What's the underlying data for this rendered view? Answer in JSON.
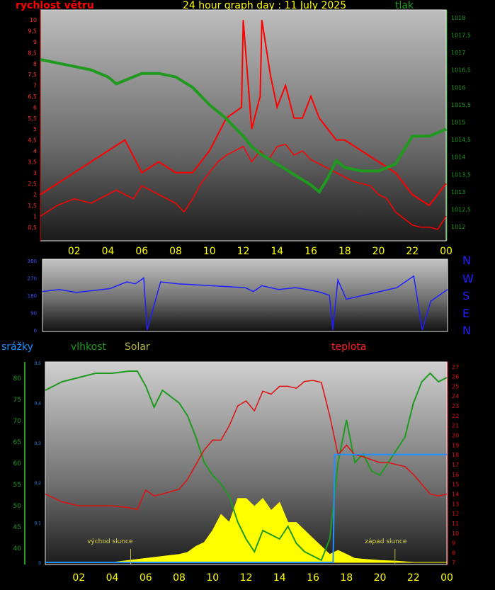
{
  "header": {
    "wind_label": "rychlost větru",
    "title": "24 hour graph day : 11 July 2025",
    "pressure_label": "tlak"
  },
  "direction_letters": [
    "N",
    "W",
    "S",
    "E",
    "N"
  ],
  "lower_header": {
    "rain_label": "srážky",
    "humidity_label": "vlhkost",
    "solar_label": "Solar",
    "temperature_label": "teplota"
  },
  "annotations": {
    "sunrise": "východ slunce",
    "sunset": "západ slunce"
  },
  "colors": {
    "wind": "#ff0000",
    "pressure": "#1f9a1f",
    "direction": "#2020ff",
    "rain": "#1e90ff",
    "humidity": "#1f9a1f",
    "solar": "#ffff00",
    "temperature": "#e01010",
    "time_axis": "#ffff00"
  },
  "chart_data": [
    {
      "type": "line",
      "name": "wind_and_pressure",
      "x_ticks": [
        "02",
        "04",
        "06",
        "08",
        "10",
        "12",
        "14",
        "16",
        "18",
        "20",
        "22",
        "00"
      ],
      "x_hours": [
        2,
        4,
        6,
        8,
        10,
        12,
        14,
        16,
        18,
        20,
        22,
        24
      ],
      "x_range": [
        0,
        24
      ],
      "y_left_ticks": [
        "0,5",
        "1",
        "1,5",
        "2",
        "2,5",
        "3",
        "3,5",
        "4",
        "4,5",
        "5",
        "5,5",
        "6",
        "6,5",
        "7",
        "7,5",
        "8",
        "8,5",
        "9",
        "9,5",
        "10"
      ],
      "y_left_range": [
        0.2,
        10.2
      ],
      "y_right_ticks": [
        "1012",
        "1012,5",
        "1013",
        "1013,5",
        "1014",
        "1014,5",
        "1015",
        "1015,5",
        "1016",
        "1016,5",
        "1017",
        "1017,5",
        "1018"
      ],
      "y_right_range": [
        1011.8,
        1018.1
      ],
      "series": [
        {
          "name": "rychlost větru",
          "axis": "left",
          "x": [
            0,
            1,
            2,
            3,
            4,
            4.5,
            5,
            5.5,
            6,
            7,
            8,
            8.5,
            9,
            9.5,
            10,
            10.5,
            11,
            11.5,
            12,
            12.5,
            13,
            13.5,
            14,
            14.5,
            15,
            15.5,
            16,
            16.5,
            17,
            17.5,
            18,
            18.5,
            19,
            19.5,
            20,
            20.5,
            21,
            21.5,
            22,
            22.5,
            23,
            23.5,
            24
          ],
          "values": [
            1,
            1.5,
            1.8,
            1.6,
            2,
            2.2,
            2,
            1.8,
            2.4,
            2,
            1.6,
            1.2,
            1.8,
            2.5,
            3,
            3.5,
            3.8,
            4,
            4.2,
            3.5,
            4,
            3.6,
            4.2,
            4.3,
            3.8,
            4,
            3.6,
            3.4,
            3.2,
            3,
            2.8,
            2.6,
            2.5,
            2.4,
            2,
            1.8,
            1.2,
            0.9,
            0.6,
            0.5,
            0.5,
            0.4,
            1
          ],
          "gusts_x": [
            0,
            1,
            2,
            3,
            4,
            5,
            6,
            7,
            8,
            9,
            10,
            11,
            11.9,
            12,
            12.5,
            13,
            13.1,
            13.6,
            14,
            14.5,
            15,
            15.5,
            16,
            16.5,
            17,
            17.5,
            18,
            19,
            20,
            21,
            22,
            23,
            24
          ],
          "gusts": [
            2,
            2.5,
            3,
            3.5,
            4,
            4.5,
            3,
            3.5,
            3,
            3,
            4,
            5.5,
            6,
            10,
            5,
            6.5,
            10,
            7.5,
            6,
            7,
            5.5,
            5.5,
            6.5,
            5.5,
            5,
            4.5,
            4.5,
            4,
            3.5,
            3,
            2,
            1.5,
            2.5
          ]
        },
        {
          "name": "tlak",
          "axis": "right",
          "x": [
            0,
            1,
            2,
            3,
            4,
            4.5,
            5,
            6,
            7,
            8,
            9,
            10,
            11,
            12,
            12.5,
            13,
            14,
            15,
            16,
            16.5,
            17,
            17.5,
            18,
            19,
            20,
            20.5,
            21,
            21.5,
            22,
            23,
            24
          ],
          "values": [
            1016.8,
            1016.7,
            1016.6,
            1016.5,
            1016.3,
            1016.1,
            1016.2,
            1016.4,
            1016.4,
            1016.3,
            1016,
            1015.5,
            1015.1,
            1014.6,
            1014.3,
            1014.1,
            1013.8,
            1013.5,
            1013.2,
            1013,
            1013.4,
            1013.9,
            1013.7,
            1013.6,
            1013.6,
            1013.7,
            1013.8,
            1014.2,
            1014.6,
            1014.6,
            1014.8
          ]
        }
      ]
    },
    {
      "type": "line",
      "name": "wind_direction",
      "y_ticks": [
        "0",
        "90",
        "180",
        "270",
        "360"
      ],
      "y_range": [
        0,
        360
      ],
      "series": [
        {
          "name": "direction",
          "x": [
            0,
            1,
            2,
            3,
            4,
            5,
            5.5,
            6,
            6.2,
            7,
            8,
            9,
            10,
            11,
            12,
            12.5,
            13,
            14,
            15,
            16,
            16.5,
            17,
            17.2,
            17.5,
            18,
            19,
            20,
            21,
            21.5,
            22,
            22.5,
            23,
            24
          ],
          "values": [
            200,
            210,
            195,
            205,
            215,
            250,
            240,
            270,
            0,
            250,
            240,
            235,
            230,
            225,
            220,
            200,
            230,
            210,
            220,
            205,
            195,
            180,
            0,
            260,
            160,
            180,
            200,
            220,
            250,
            280,
            0,
            150,
            210
          ]
        }
      ]
    },
    {
      "type": "line",
      "name": "rain_humidity_solar_temperature",
      "y_humidity_ticks": [
        "40",
        "45",
        "50",
        "55",
        "60",
        "65",
        "70",
        "75",
        "80"
      ],
      "y_humidity_range": [
        36,
        83
      ],
      "y_rain_ticks": [
        "0",
        "0,1",
        "0,2",
        "0,3",
        "0,4",
        "0,5"
      ],
      "y_rain_range": [
        0,
        0.5
      ],
      "y_temperature_ticks": [
        "7",
        "8",
        "9",
        "10",
        "11",
        "12",
        "13",
        "14",
        "15",
        "16",
        "17",
        "18",
        "19",
        "20",
        "21",
        "22",
        "23",
        "24",
        "25",
        "26",
        "27"
      ],
      "y_temperature_range": [
        6.8,
        27.2
      ],
      "series": [
        {
          "name": "vlhkost",
          "axis": "humidity",
          "x": [
            0,
            1,
            2,
            3,
            4,
            5,
            5.5,
            6,
            6.5,
            7,
            8,
            8.5,
            9,
            9.5,
            10,
            10.5,
            11,
            11.5,
            12,
            12.5,
            13,
            13.5,
            14,
            14.5,
            15,
            15.5,
            16,
            16.5,
            17,
            17.5,
            18,
            18.5,
            19,
            19.5,
            20,
            20.5,
            21,
            21.5,
            22,
            22.5,
            23,
            23.5,
            24
          ],
          "values": [
            77,
            79,
            80,
            81,
            81,
            81.5,
            81.5,
            78,
            73,
            77,
            74,
            71,
            66,
            60,
            57,
            55,
            52,
            46,
            42,
            39,
            44,
            43,
            42,
            45,
            41,
            39,
            38,
            37,
            42,
            60,
            70,
            60,
            62,
            58,
            57,
            60,
            63,
            66,
            74,
            79,
            81,
            79,
            80
          ]
        },
        {
          "name": "Solar",
          "axis": "rain",
          "x": [
            0,
            4,
            5,
            6,
            7,
            8,
            8.5,
            9,
            9.5,
            10,
            10.5,
            11,
            11.5,
            12,
            12.5,
            13,
            13.5,
            14,
            14.5,
            15,
            15.5,
            16,
            16.5,
            17,
            17.5,
            18,
            18.5,
            19,
            20,
            21,
            22,
            24
          ],
          "values": [
            0,
            0,
            0.005,
            0.01,
            0.015,
            0.02,
            0.025,
            0.04,
            0.05,
            0.08,
            0.12,
            0.1,
            0.16,
            0.16,
            0.14,
            0.16,
            0.13,
            0.15,
            0.1,
            0.1,
            0.08,
            0.06,
            0.04,
            0.02,
            0.03,
            0.02,
            0.01,
            0.008,
            0.005,
            0.003,
            0,
            0
          ]
        },
        {
          "name": "srážky",
          "axis": "rain",
          "x": [
            0,
            17.2,
            17.3,
            18,
            24
          ],
          "values": [
            0,
            0,
            0.27,
            0.27,
            0.27
          ]
        },
        {
          "name": "teplota",
          "axis": "temperature",
          "x": [
            0,
            1,
            2,
            3,
            4,
            5,
            5.5,
            6,
            6.5,
            7,
            8,
            8.5,
            9,
            9.5,
            10,
            10.5,
            11,
            11.5,
            12,
            12.5,
            13,
            13.5,
            14,
            14.5,
            15,
            15.5,
            16,
            16.5,
            17,
            17.5,
            18,
            18.5,
            19,
            19.5,
            20,
            20.5,
            21,
            21.5,
            22,
            22.5,
            23,
            23.5,
            24
          ],
          "values": [
            14,
            13.2,
            12.8,
            12.8,
            12.8,
            12.6,
            12.4,
            14.4,
            13.8,
            14,
            14.5,
            15.5,
            17,
            18.5,
            19.5,
            19.5,
            21,
            23,
            23.5,
            22.5,
            24.5,
            24.2,
            25,
            25,
            24.8,
            25.5,
            25.6,
            25.4,
            22,
            18,
            19,
            18,
            17.8,
            17.5,
            17.2,
            17.2,
            17,
            16.8,
            16,
            15,
            14,
            13.8,
            14
          ]
        }
      ]
    }
  ]
}
